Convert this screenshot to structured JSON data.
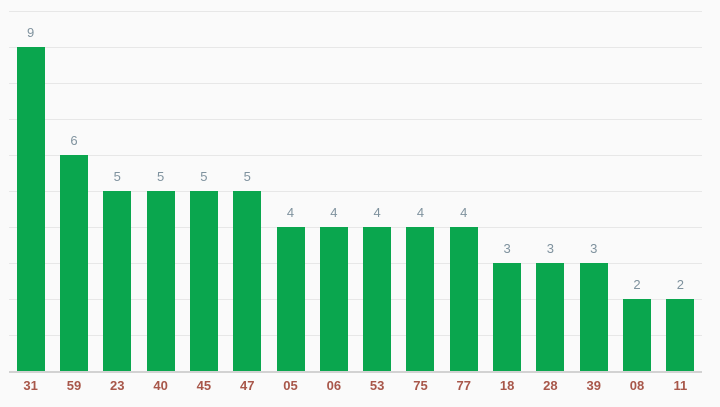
{
  "chart_data": {
    "type": "bar",
    "title": "",
    "xlabel": "",
    "ylabel": "",
    "categories": [
      "31",
      "59",
      "23",
      "40",
      "45",
      "47",
      "05",
      "06",
      "53",
      "75",
      "77",
      "18",
      "28",
      "39",
      "08",
      "11"
    ],
    "values": [
      9,
      6,
      5,
      5,
      5,
      5,
      4,
      4,
      4,
      4,
      4,
      3,
      3,
      3,
      2,
      2
    ],
    "value_labels_shown": true,
    "ylim": [
      0,
      10
    ],
    "gridline_step": 1,
    "grid": true,
    "legend_position": "none",
    "yaxis_tick_labels_visible": false,
    "colors": {
      "background": "#fafafa",
      "bar": "#0aa64e",
      "gridline": "#e7e7e7",
      "axis_line": "#d2d2d2",
      "value_label": "#7f929e",
      "x_tick_label": "#a8574a"
    }
  }
}
